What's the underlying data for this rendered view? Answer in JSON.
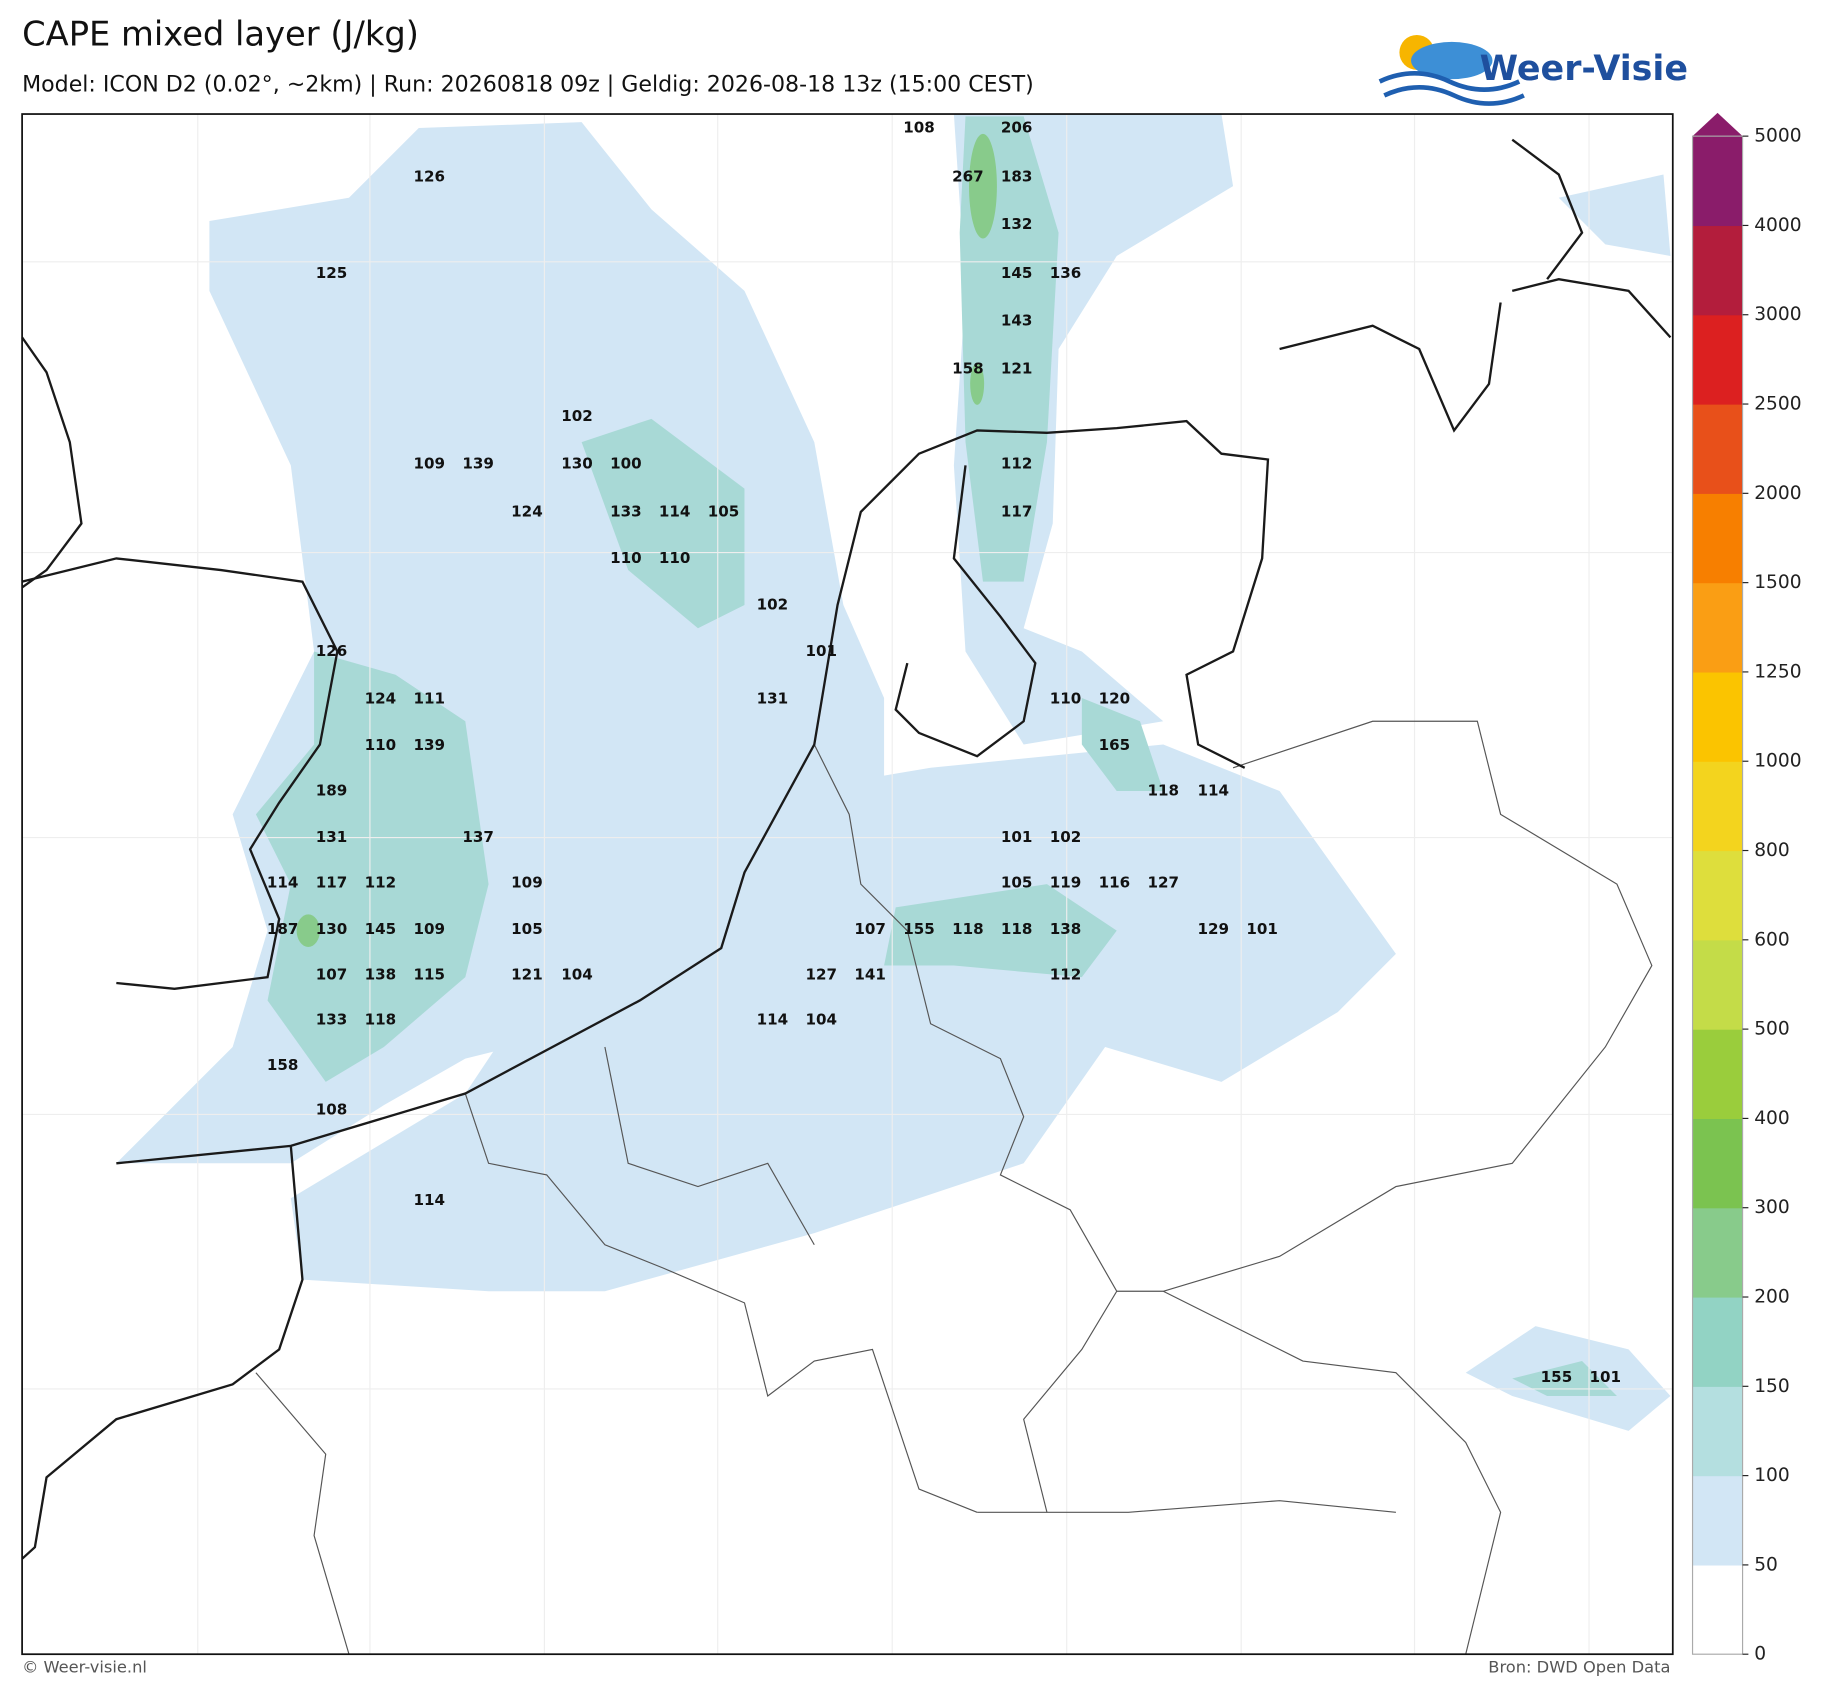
{
  "header": {
    "title": "CAPE mixed layer (J/kg)",
    "subtitle": "Model: ICON D2 (0.02°, ~2km)  |  Run: 20260818 09z  |  Geldig: 2026-08-18 13z (15:00 CEST)"
  },
  "logo": {
    "text": "Weer-Visie"
  },
  "footer": {
    "left": "© Weer-visie.nl",
    "right": "Bron: DWD Open Data"
  },
  "colorbar": {
    "ticks": [
      0,
      50,
      100,
      150,
      200,
      300,
      400,
      500,
      600,
      800,
      1000,
      1250,
      1500,
      2000,
      2500,
      3000,
      4000,
      5000
    ],
    "colors": [
      "#ffffff",
      "#d2e6f5",
      "#b4dfe0",
      "#92d3c4",
      "#88cb8b",
      "#7bc350",
      "#9acd3c",
      "#c4dc48",
      "#dede3c",
      "#f3d41e",
      "#fbc400",
      "#fa9e14",
      "#f77f00",
      "#e8501a",
      "#dc2020",
      "#b31d3c",
      "#8a1c6a"
    ]
  },
  "map": {
    "labels": [
      108,
      206,
      126,
      267,
      183,
      132,
      125,
      145,
      136,
      143,
      158,
      121,
      102,
      109,
      139,
      130,
      100,
      112,
      124,
      133,
      114,
      105,
      117,
      110,
      110,
      102,
      126,
      101,
      124,
      111,
      131,
      110,
      120,
      110,
      139,
      165,
      189,
      118,
      114,
      131,
      137,
      101,
      102,
      114,
      117,
      112,
      109,
      105,
      119,
      116,
      127,
      187,
      130,
      145,
      109,
      105,
      107,
      155,
      118,
      118,
      138,
      129,
      101,
      107,
      138,
      115,
      121,
      104,
      127,
      141,
      112,
      133,
      118,
      114,
      104,
      158,
      108,
      114,
      155,
      101
    ]
  }
}
